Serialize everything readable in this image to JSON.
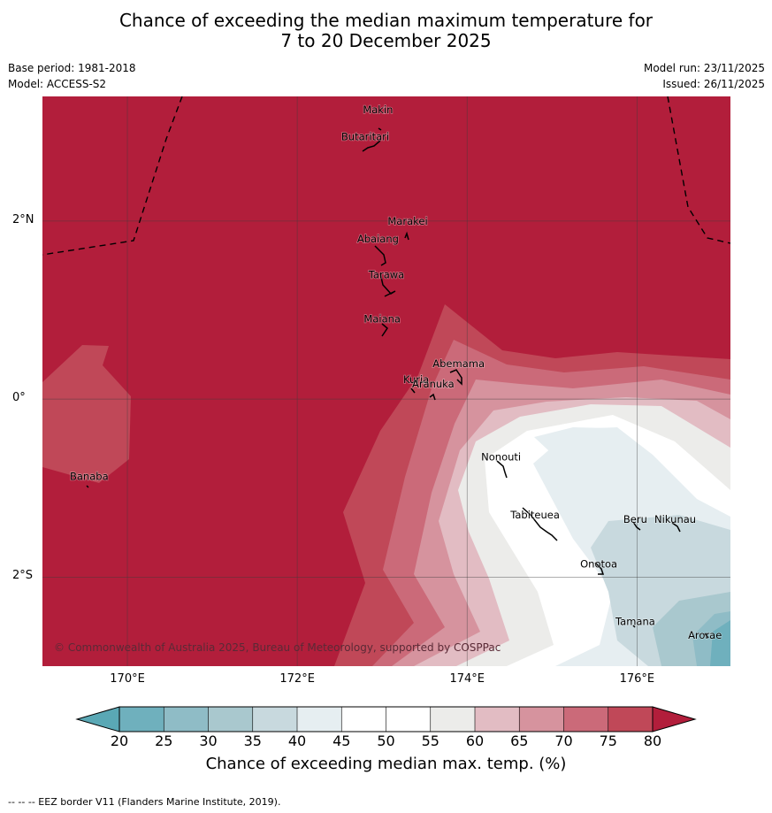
{
  "title": {
    "line1": "Chance of exceeding the median maximum temperature for",
    "line2": "7 to 20 December 2025"
  },
  "meta": {
    "base_period": "Base period: 1981-2018",
    "model": "Model: ACCESS-S2",
    "model_run": "Model run: 23/11/2025",
    "issued": "Issued: 26/11/2025"
  },
  "map": {
    "lon_range": [
      169.0,
      177.1
    ],
    "lat_range": [
      -3.0,
      3.4
    ],
    "lat_ticks": [
      {
        "value": 2,
        "label": "2°N"
      },
      {
        "value": 0,
        "label": "0°"
      },
      {
        "value": -2,
        "label": "2°S"
      }
    ],
    "lon_ticks": [
      {
        "value": 170,
        "label": "170°E"
      },
      {
        "value": 172,
        "label": "172°E"
      },
      {
        "value": 174,
        "label": "174°E"
      },
      {
        "value": 176,
        "label": "176°E"
      }
    ],
    "places": [
      {
        "name": "Makin",
        "lon": 172.95,
        "lat": 3.25
      },
      {
        "name": "Butaritari",
        "lon": 172.8,
        "lat": 2.95
      },
      {
        "name": "Marakei",
        "lon": 173.3,
        "lat": 2.0
      },
      {
        "name": "Abaiang",
        "lon": 172.95,
        "lat": 1.8
      },
      {
        "name": "Tarawa",
        "lon": 173.05,
        "lat": 1.4
      },
      {
        "name": "Maiana",
        "lon": 173.0,
        "lat": 0.9
      },
      {
        "name": "Abemama",
        "lon": 173.9,
        "lat": 0.4
      },
      {
        "name": "Kuria",
        "lon": 173.4,
        "lat": 0.22
      },
      {
        "name": "Aranuka",
        "lon": 173.6,
        "lat": 0.17
      },
      {
        "name": "Banaba",
        "lon": 169.55,
        "lat": -0.87
      },
      {
        "name": "Nonouti",
        "lon": 174.4,
        "lat": -0.65
      },
      {
        "name": "Tabiteuea",
        "lon": 174.8,
        "lat": -1.3
      },
      {
        "name": "Beru",
        "lon": 175.98,
        "lat": -1.35
      },
      {
        "name": "Nikunau",
        "lon": 176.45,
        "lat": -1.35
      },
      {
        "name": "Onotoa",
        "lon": 175.55,
        "lat": -1.85
      },
      {
        "name": "Tamana",
        "lon": 175.98,
        "lat": -2.5
      },
      {
        "name": "Arorae",
        "lon": 176.8,
        "lat": -2.65
      }
    ],
    "copyright": "© Commonwealth of Australia 2025, Bureau of Meteorology, supported by COSPPac"
  },
  "colorbar": {
    "levels": [
      20,
      25,
      30,
      35,
      40,
      45,
      50,
      55,
      60,
      65,
      70,
      75,
      80
    ],
    "colors": [
      "#6fb0bd",
      "#8fbcc6",
      "#a9c8ce",
      "#c8d9de",
      "#e6eef1",
      "#ffffff",
      "#ffffff",
      "#ececea",
      "#e2bcc3",
      "#d6939e",
      "#cb6a79",
      "#c04858"
    ],
    "under_color": "#5aa8b5",
    "over_color": "#b21e3b",
    "label": "Chance of exceeding median max. temp. (%)"
  },
  "footer": "--  --  -- EEZ border V11 (Flanders Marine Institute, 2019)."
}
